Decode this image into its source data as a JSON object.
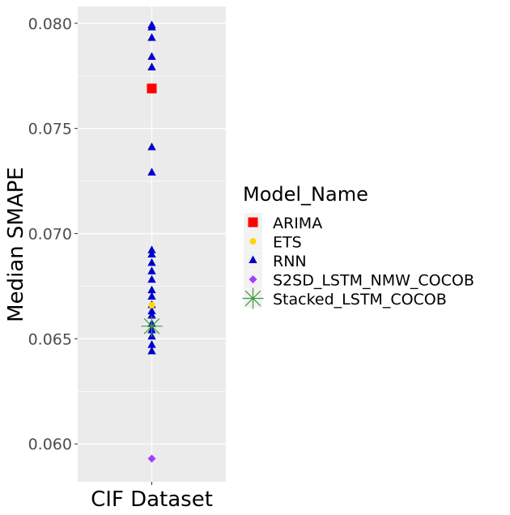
{
  "chart_data": {
    "type": "scatter",
    "xlabel": "CIF Dataset",
    "ylabel": "Median SMAPE",
    "categories": [
      "CIF Dataset"
    ],
    "ylim": [
      0.0582,
      0.0808
    ],
    "yticks": [
      "0.060",
      "0.065",
      "0.070",
      "0.075",
      "0.080"
    ],
    "ytick_values": [
      0.06,
      0.065,
      0.07,
      0.075,
      0.08
    ],
    "grid": true,
    "legend_position": "right",
    "legend": {
      "title": "Model_Name",
      "items": [
        {
          "label": "ARIMA",
          "shape": "square",
          "color": "#ff0000"
        },
        {
          "label": "ETS",
          "shape": "circle",
          "color": "#ffd700"
        },
        {
          "label": "RNN",
          "shape": "triangle",
          "color": "#0000cd"
        },
        {
          "label": "S2SD_LSTM_NMW_COCOB",
          "shape": "diamond",
          "color": "#a040ff"
        },
        {
          "label": "Stacked_LSTM_COCOB",
          "shape": "asterisk",
          "color": "#3c9a3c"
        }
      ]
    },
    "series": [
      {
        "name": "ARIMA",
        "values": [
          0.0769
        ]
      },
      {
        "name": "ETS",
        "values": [
          0.0666
        ]
      },
      {
        "name": "RNN",
        "values": [
          0.0799,
          0.0798,
          0.0793,
          0.0784,
          0.0779,
          0.0741,
          0.0729,
          0.0692,
          0.069,
          0.0686,
          0.0682,
          0.0678,
          0.0673,
          0.067,
          0.0666,
          0.0663,
          0.0661,
          0.0657,
          0.0654,
          0.0651,
          0.0647,
          0.0644
        ]
      },
      {
        "name": "S2SD_LSTM_NMW_COCOB",
        "values": [
          0.0593
        ]
      },
      {
        "name": "Stacked_LSTM_COCOB",
        "values": [
          0.0656
        ]
      }
    ]
  }
}
